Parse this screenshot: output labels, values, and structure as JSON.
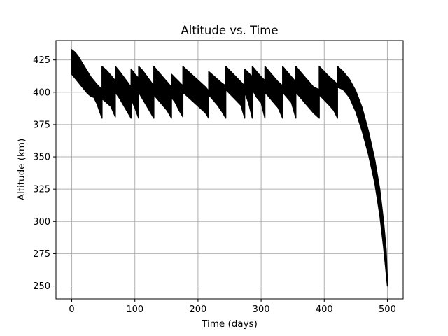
{
  "chart_data": {
    "type": "area",
    "title": "Altitude vs. Time",
    "xlabel": "Time (days)",
    "ylabel": "Altitude (km)",
    "xlim": [
      -25,
      525
    ],
    "ylim": [
      240,
      440
    ],
    "xticks": [
      0,
      100,
      200,
      300,
      400,
      500
    ],
    "yticks": [
      250,
      275,
      300,
      325,
      350,
      375,
      400,
      425
    ],
    "grid": true,
    "legend": "none",
    "series": [
      {
        "color": "#000000",
        "upper_envelope": [
          [
            0,
            433
          ],
          [
            5,
            431
          ],
          [
            10,
            428
          ],
          [
            15,
            424
          ],
          [
            20,
            420
          ],
          [
            25,
            416
          ],
          [
            30,
            412
          ],
          [
            35,
            409
          ],
          [
            40,
            406
          ],
          [
            48,
            402
          ],
          [
            48,
            420
          ],
          [
            55,
            417
          ],
          [
            62,
            413
          ],
          [
            69,
            409
          ],
          [
            69,
            420
          ],
          [
            76,
            416
          ],
          [
            82,
            412
          ],
          [
            88,
            408
          ],
          [
            94,
            404
          ],
          [
            94,
            418
          ],
          [
            100,
            414
          ],
          [
            106,
            411
          ],
          [
            106,
            420
          ],
          [
            112,
            417
          ],
          [
            118,
            413
          ],
          [
            124,
            409
          ],
          [
            130,
            405
          ],
          [
            130,
            420
          ],
          [
            137,
            416
          ],
          [
            144,
            412
          ],
          [
            151,
            408
          ],
          [
            158,
            404
          ],
          [
            158,
            414
          ],
          [
            164,
            411
          ],
          [
            170,
            408
          ],
          [
            176,
            405
          ],
          [
            176,
            420
          ],
          [
            185,
            416
          ],
          [
            194,
            412
          ],
          [
            203,
            408
          ],
          [
            212,
            404
          ],
          [
            217,
            401
          ],
          [
            217,
            416
          ],
          [
            224,
            413
          ],
          [
            231,
            410
          ],
          [
            238,
            407
          ],
          [
            244,
            405
          ],
          [
            244,
            420
          ],
          [
            252,
            416
          ],
          [
            260,
            412
          ],
          [
            268,
            408
          ],
          [
            274,
            405
          ],
          [
            274,
            418
          ],
          [
            280,
            415
          ],
          [
            286,
            412
          ],
          [
            286,
            420
          ],
          [
            293,
            416
          ],
          [
            300,
            412
          ],
          [
            306,
            409
          ],
          [
            306,
            420
          ],
          [
            313,
            416
          ],
          [
            320,
            412
          ],
          [
            327,
            408
          ],
          [
            334,
            405
          ],
          [
            334,
            420
          ],
          [
            341,
            416
          ],
          [
            348,
            412
          ],
          [
            355,
            408
          ],
          [
            355,
            420
          ],
          [
            362,
            416
          ],
          [
            369,
            412
          ],
          [
            376,
            408
          ],
          [
            383,
            404
          ],
          [
            392,
            402
          ],
          [
            392,
            420
          ],
          [
            400,
            416
          ],
          [
            408,
            412
          ],
          [
            415,
            409
          ],
          [
            421,
            406
          ],
          [
            421,
            420
          ],
          [
            430,
            416
          ],
          [
            440,
            410
          ],
          [
            450,
            401
          ],
          [
            460,
            388
          ],
          [
            470,
            370
          ],
          [
            480,
            348
          ],
          [
            488,
            325
          ],
          [
            494,
            300
          ],
          [
            498,
            278
          ],
          [
            500,
            255
          ]
        ],
        "lower_envelope": [
          [
            0,
            414
          ],
          [
            5,
            411
          ],
          [
            10,
            408
          ],
          [
            15,
            405
          ],
          [
            20,
            402
          ],
          [
            25,
            399
          ],
          [
            30,
            397
          ],
          [
            35,
            396
          ],
          [
            40,
            391
          ],
          [
            45,
            384
          ],
          [
            48,
            380
          ],
          [
            48,
            395
          ],
          [
            55,
            392
          ],
          [
            62,
            389
          ],
          [
            69,
            381
          ],
          [
            69,
            400
          ],
          [
            76,
            395
          ],
          [
            82,
            390
          ],
          [
            88,
            385
          ],
          [
            94,
            380
          ],
          [
            94,
            395
          ],
          [
            100,
            388
          ],
          [
            106,
            380
          ],
          [
            106,
            400
          ],
          [
            112,
            395
          ],
          [
            118,
            390
          ],
          [
            124,
            385
          ],
          [
            130,
            380
          ],
          [
            130,
            398
          ],
          [
            137,
            394
          ],
          [
            144,
            390
          ],
          [
            151,
            386
          ],
          [
            158,
            380
          ],
          [
            158,
            396
          ],
          [
            164,
            392
          ],
          [
            170,
            386
          ],
          [
            176,
            381
          ],
          [
            176,
            400
          ],
          [
            185,
            396
          ],
          [
            194,
            392
          ],
          [
            203,
            388
          ],
          [
            212,
            384
          ],
          [
            217,
            380
          ],
          [
            217,
            398
          ],
          [
            224,
            394
          ],
          [
            231,
            390
          ],
          [
            238,
            385
          ],
          [
            244,
            380
          ],
          [
            244,
            402
          ],
          [
            252,
            398
          ],
          [
            260,
            394
          ],
          [
            268,
            390
          ],
          [
            274,
            380
          ],
          [
            274,
            400
          ],
          [
            280,
            392
          ],
          [
            286,
            380
          ],
          [
            286,
            402
          ],
          [
            293,
            396
          ],
          [
            300,
            392
          ],
          [
            306,
            380
          ],
          [
            306,
            400
          ],
          [
            313,
            396
          ],
          [
            320,
            392
          ],
          [
            327,
            388
          ],
          [
            334,
            380
          ],
          [
            334,
            400
          ],
          [
            341,
            396
          ],
          [
            348,
            392
          ],
          [
            355,
            380
          ],
          [
            355,
            400
          ],
          [
            362,
            396
          ],
          [
            369,
            392
          ],
          [
            376,
            388
          ],
          [
            383,
            384
          ],
          [
            392,
            380
          ],
          [
            392,
            398
          ],
          [
            400,
            394
          ],
          [
            408,
            390
          ],
          [
            415,
            386
          ],
          [
            421,
            380
          ],
          [
            421,
            404
          ],
          [
            430,
            402
          ],
          [
            440,
            396
          ],
          [
            450,
            385
          ],
          [
            460,
            370
          ],
          [
            470,
            352
          ],
          [
            480,
            330
          ],
          [
            488,
            305
          ],
          [
            494,
            280
          ],
          [
            498,
            260
          ],
          [
            500,
            250
          ]
        ]
      }
    ]
  }
}
